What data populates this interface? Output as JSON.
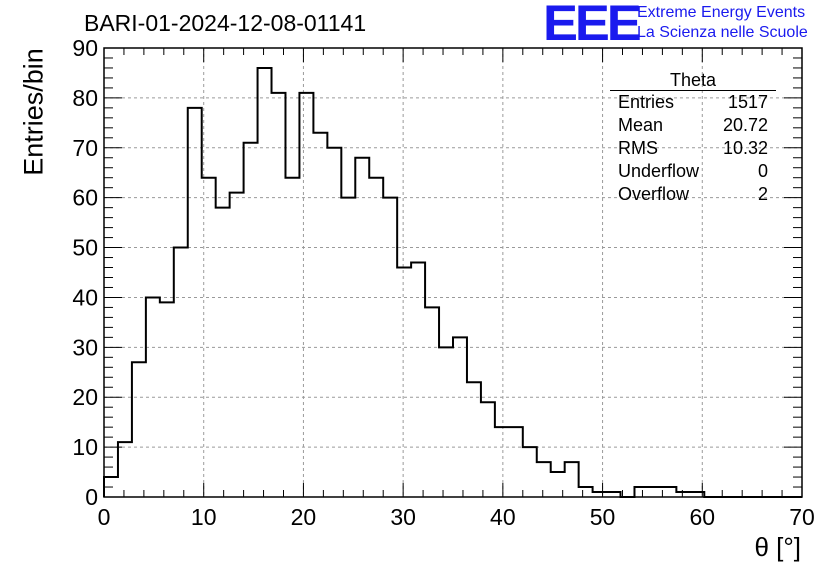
{
  "header": {
    "title": "BARI-01-2024-12-08-01141"
  },
  "logo": {
    "mark": "EEE",
    "line1": "Extreme Energy Events",
    "line2": "La Scienza nelle Scuole",
    "color": "#1a1aee"
  },
  "stats": {
    "title": "Theta",
    "rows": [
      {
        "label": "Entries",
        "value": "1517"
      },
      {
        "label": "Mean",
        "value": "20.72"
      },
      {
        "label": "RMS",
        "value": "10.32"
      },
      {
        "label": "Underflow",
        "value": "0"
      },
      {
        "label": "Overflow",
        "value": "2"
      }
    ]
  },
  "chart_data": {
    "type": "bar",
    "style": "step-histogram",
    "title": "BARI-01-2024-12-08-01141",
    "xlabel": "θ [°]",
    "ylabel": "Entries/bin",
    "xlim": [
      0,
      70
    ],
    "ylim": [
      0,
      90
    ],
    "xticks": [
      "0",
      "10",
      "20",
      "30",
      "40",
      "50",
      "60",
      "70"
    ],
    "yticks": [
      "0",
      "10",
      "20",
      "30",
      "40",
      "50",
      "60",
      "70",
      "80",
      "90"
    ],
    "grid": true,
    "bin_width": 1.4,
    "values": [
      4,
      11,
      27,
      40,
      39,
      50,
      78,
      64,
      58,
      61,
      71,
      86,
      81,
      64,
      81,
      73,
      70,
      60,
      68,
      64,
      60,
      46,
      47,
      38,
      30,
      32,
      23,
      19,
      14,
      14,
      10,
      7,
      5,
      7,
      2,
      1,
      1,
      0,
      2,
      2,
      2,
      1,
      1,
      0,
      0,
      0,
      0,
      0,
      0,
      0
    ],
    "line_color": "#000000",
    "grid_color": "#9a9a9a"
  }
}
